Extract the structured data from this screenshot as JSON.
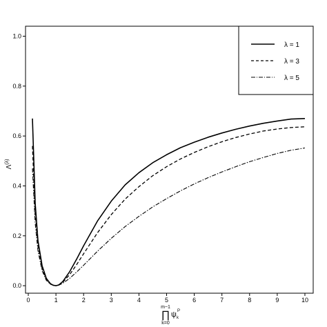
{
  "chart_data": {
    "type": "line",
    "xlabel_sub_top": "m−1",
    "xlabel_sub_bottom": "k=0",
    "xlabel_symbol": "∏",
    "xlabel_var": "ψ",
    "xlabel_var_sup": "P",
    "xlabel_var_sub": "k",
    "ylabel_main": "Λ",
    "ylabel_sup": "(λ)",
    "xlim": [
      -0.1,
      10.3
    ],
    "ylim": [
      -0.03,
      1.04
    ],
    "xticks": [
      "0",
      "1",
      "2",
      "3",
      "4",
      "5",
      "6",
      "7",
      "8",
      "9",
      "10"
    ],
    "yticks": [
      "0.0",
      "0.2",
      "0.4",
      "0.6",
      "0.8",
      "1.0"
    ],
    "grid": false,
    "legend_position": "top-right",
    "series": [
      {
        "name": "λ = 1",
        "style": "solid",
        "x": [
          0.15,
          0.25,
          0.35,
          0.5,
          0.65,
          0.8,
          0.9,
          1.0,
          1.1,
          1.25,
          1.5,
          1.75,
          2,
          2.5,
          3,
          3.5,
          4,
          4.5,
          5,
          5.5,
          6,
          6.5,
          7,
          7.5,
          8,
          8.5,
          9,
          9.5,
          10
        ],
        "y": [
          0.67,
          0.33,
          0.18,
          0.08,
          0.03,
          0.008,
          0.002,
          0.0,
          0.003,
          0.017,
          0.057,
          0.107,
          0.16,
          0.259,
          0.339,
          0.404,
          0.453,
          0.493,
          0.525,
          0.553,
          0.575,
          0.595,
          0.612,
          0.627,
          0.64,
          0.651,
          0.66,
          0.668,
          0.67
        ]
      },
      {
        "name": "λ = 3",
        "style": "dashed",
        "x": [
          0.15,
          0.25,
          0.35,
          0.5,
          0.65,
          0.8,
          0.9,
          1.0,
          1.1,
          1.25,
          1.5,
          1.75,
          2,
          2.5,
          3,
          3.5,
          4,
          4.5,
          5,
          5.5,
          6,
          6.5,
          7,
          7.5,
          8,
          8.5,
          9,
          9.5,
          10
        ],
        "y": [
          0.56,
          0.29,
          0.16,
          0.07,
          0.025,
          0.007,
          0.002,
          0.0,
          0.003,
          0.014,
          0.045,
          0.085,
          0.128,
          0.212,
          0.285,
          0.347,
          0.397,
          0.441,
          0.477,
          0.508,
          0.534,
          0.557,
          0.577,
          0.594,
          0.608,
          0.62,
          0.628,
          0.634,
          0.637
        ]
      },
      {
        "name": "λ = 5",
        "style": "dashdot",
        "x": [
          0.15,
          0.25,
          0.35,
          0.5,
          0.65,
          0.8,
          0.9,
          1.0,
          1.1,
          1.25,
          1.5,
          1.75,
          2,
          2.5,
          3,
          3.5,
          4,
          4.5,
          5,
          5.5,
          6,
          6.5,
          7,
          7.5,
          8,
          8.5,
          9,
          9.5,
          10
        ],
        "y": [
          0.47,
          0.25,
          0.14,
          0.06,
          0.022,
          0.006,
          0.002,
          0.0,
          0.002,
          0.01,
          0.03,
          0.055,
          0.082,
          0.138,
          0.19,
          0.237,
          0.278,
          0.316,
          0.349,
          0.38,
          0.408,
          0.433,
          0.456,
          0.477,
          0.497,
          0.514,
          0.53,
          0.543,
          0.552
        ]
      }
    ]
  }
}
